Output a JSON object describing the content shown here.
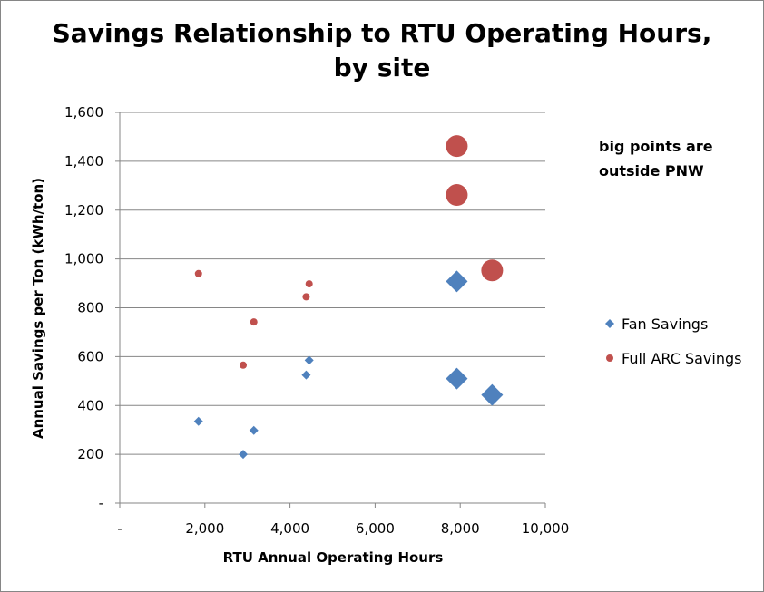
{
  "chart_data": {
    "type": "scatter",
    "title_lines": [
      "Savings Relationship to RTU Operating Hours,",
      "by site"
    ],
    "xlabel": "RTU Annual Operating Hours",
    "ylabel": "Annual Savings per Ton (kWh/ton)",
    "xlim": [
      0,
      10000
    ],
    "ylim": [
      0,
      1600
    ],
    "x_ticks": [
      {
        "value": 0,
        "label": "-"
      },
      {
        "value": 2000,
        "label": "2,000"
      },
      {
        "value": 4000,
        "label": "4,000"
      },
      {
        "value": 6000,
        "label": "6,000"
      },
      {
        "value": 8000,
        "label": "8,000"
      },
      {
        "value": 10000,
        "label": "10,000"
      }
    ],
    "y_ticks": [
      {
        "value": 0,
        "label": "-"
      },
      {
        "value": 200,
        "label": "200"
      },
      {
        "value": 400,
        "label": "400"
      },
      {
        "value": 600,
        "label": "600"
      },
      {
        "value": 800,
        "label": "800"
      },
      {
        "value": 1000,
        "label": "1,000"
      },
      {
        "value": 1200,
        "label": "1,200"
      },
      {
        "value": 1400,
        "label": "1,400"
      },
      {
        "value": 1600,
        "label": "1,600"
      }
    ],
    "grid": "horizontal",
    "legend_position": "right",
    "annotation_lines": [
      "big points are",
      "outside PNW"
    ],
    "series": [
      {
        "name": "Fan Savings",
        "color": "#4F81BD",
        "marker": "diamond",
        "points": [
          {
            "x": 1850,
            "y": 335,
            "big": false
          },
          {
            "x": 2900,
            "y": 200,
            "big": false
          },
          {
            "x": 3150,
            "y": 298,
            "big": false
          },
          {
            "x": 4380,
            "y": 525,
            "big": false
          },
          {
            "x": 4450,
            "y": 585,
            "big": false
          },
          {
            "x": 7920,
            "y": 908,
            "big": true
          },
          {
            "x": 7920,
            "y": 510,
            "big": true
          },
          {
            "x": 8750,
            "y": 443,
            "big": true
          }
        ]
      },
      {
        "name": "Full ARC Savings",
        "color": "#C0504D",
        "marker": "circle",
        "points": [
          {
            "x": 1850,
            "y": 940,
            "big": false
          },
          {
            "x": 2900,
            "y": 565,
            "big": false
          },
          {
            "x": 3150,
            "y": 742,
            "big": false
          },
          {
            "x": 4380,
            "y": 845,
            "big": false
          },
          {
            "x": 4450,
            "y": 898,
            "big": false
          },
          {
            "x": 7920,
            "y": 1462,
            "big": true
          },
          {
            "x": 7920,
            "y": 1262,
            "big": true
          },
          {
            "x": 8750,
            "y": 953,
            "big": true
          }
        ]
      }
    ]
  }
}
